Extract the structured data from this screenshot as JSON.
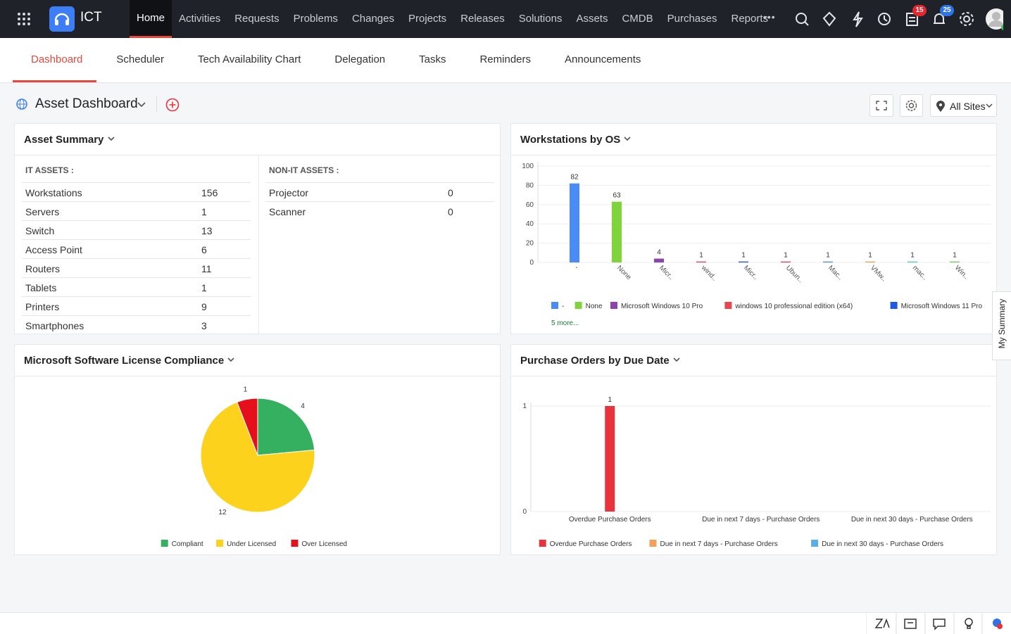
{
  "nav": {
    "app_name": "ICT",
    "menu": [
      "Home",
      "Activities",
      "Requests",
      "Problems",
      "Changes",
      "Projects",
      "Releases",
      "Solutions",
      "Assets",
      "CMDB",
      "Purchases",
      "Reports"
    ],
    "more": "•••",
    "badges": [
      15,
      25
    ]
  },
  "tabs": [
    "Dashboard",
    "Scheduler",
    "Tech Availability Chart",
    "Delegation",
    "Tasks",
    "Reminders",
    "Announcements"
  ],
  "dashboard": {
    "title": "Asset Dashboard",
    "site": "All Sites"
  },
  "asset_summary": {
    "title": "Asset Summary",
    "it_header": "IT ASSETS :",
    "it_rows": [
      [
        "Workstations",
        156
      ],
      [
        "Servers",
        1
      ],
      [
        "Switch",
        13
      ],
      [
        "Access Point",
        6
      ],
      [
        "Routers",
        11
      ],
      [
        "Tablets",
        1
      ],
      [
        "Printers",
        9
      ],
      [
        "Smartphones",
        3
      ]
    ],
    "non_it_header": "NON-IT ASSETS :",
    "non_it_rows": [
      [
        "Projector",
        0
      ],
      [
        "Scanner",
        0
      ]
    ]
  },
  "chart_data": [
    {
      "type": "bar",
      "title": "Workstations by OS",
      "categories": [
        "-",
        "None",
        "Micr..",
        "wind..",
        "Micr..",
        "Ubun..",
        "Mac..",
        "VMw..",
        "mac..",
        "Win.."
      ],
      "values": [
        82,
        63,
        4,
        1,
        1,
        1,
        1,
        1,
        1,
        1
      ],
      "colors": [
        "#4a8cf7",
        "#7ed43a",
        "#8e44ad",
        "#e8474f",
        "#1f5be0",
        "#e8474f",
        "#5b8def",
        "#f0a04b",
        "#5cc6b0",
        "#6fcf5a"
      ],
      "legend": [
        "-",
        "None",
        "Microsoft Windows 10 Pro",
        "windows 10 professional edition (x64)",
        "Microsoft Windows 11 Pro"
      ],
      "legend_more": "5 more...",
      "ylim": [
        0,
        100
      ],
      "yticks": [
        0,
        20,
        40,
        60,
        80,
        100
      ],
      "grid": true
    },
    {
      "type": "pie",
      "title": "Microsoft Software License Compliance",
      "categories": [
        "Compliant",
        "Under Licensed",
        "Over Licensed"
      ],
      "values": [
        4,
        12,
        1
      ],
      "colors": [
        "#34b060",
        "#fcd21d",
        "#e5101b"
      ]
    },
    {
      "type": "bar",
      "title": "Purchase Orders by Due Date",
      "categories": [
        "Overdue Purchase Orders",
        "Due in next 7 days - Purchase Orders",
        "Due in next 30 days - Purchase Orders"
      ],
      "values": [
        1,
        0,
        0
      ],
      "colors": [
        "#e8333c",
        "#f5a05a",
        "#5aaee6"
      ],
      "ylim": [
        0,
        1
      ],
      "yticks": [
        0,
        1
      ],
      "grid": true
    }
  ],
  "side_tab": "My Summary"
}
